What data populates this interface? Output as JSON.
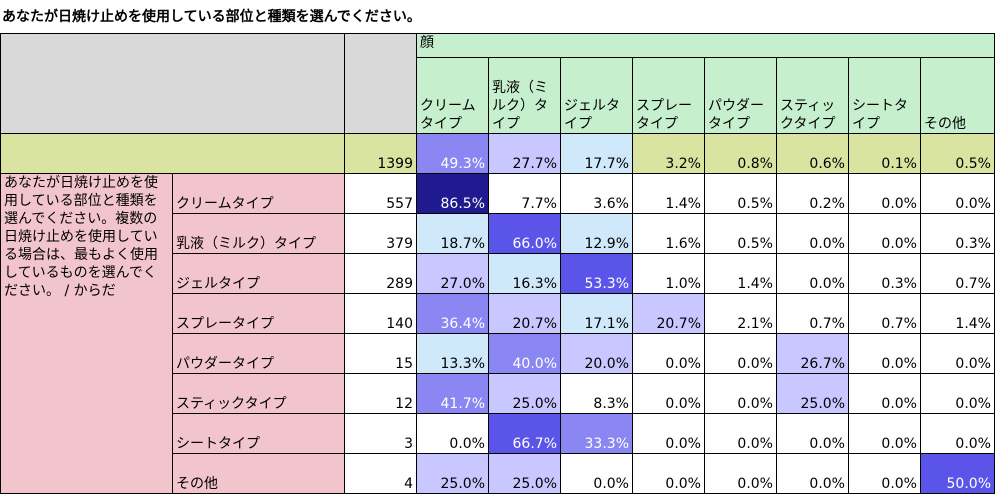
{
  "title": "あなたが日焼け止めを使用している部位と種類を選んでください。",
  "chart_data": {
    "type": "table",
    "column_group": "顔",
    "columns": [
      "クリームタイプ",
      "乳液（ミルク）タイプ",
      "ジェルタイプ",
      "スプレータイプ",
      "パウダータイプ",
      "スティックタイプ",
      "シートタイプ",
      "その他"
    ],
    "row_group": "あなたが日焼け止めを使用している部位と種類を選んでください。複数の日焼け止めを使用している場合は、最もよく使用しているものを選んでください。 / からだ",
    "total": {
      "n": 1399,
      "values": [
        "49.3%",
        "27.7%",
        "17.7%",
        "3.2%",
        "0.8%",
        "0.6%",
        "0.1%",
        "0.5%"
      ]
    },
    "rows": [
      {
        "label": "クリームタイプ",
        "n": 557,
        "values": [
          "86.5%",
          "7.7%",
          "3.6%",
          "1.4%",
          "0.5%",
          "0.2%",
          "0.0%",
          "0.0%"
        ]
      },
      {
        "label": "乳液（ミルク）タイプ",
        "n": 379,
        "values": [
          "18.7%",
          "66.0%",
          "12.9%",
          "1.6%",
          "0.5%",
          "0.0%",
          "0.0%",
          "0.3%"
        ]
      },
      {
        "label": "ジェルタイプ",
        "n": 289,
        "values": [
          "27.0%",
          "16.3%",
          "53.3%",
          "1.0%",
          "1.4%",
          "0.0%",
          "0.3%",
          "0.7%"
        ]
      },
      {
        "label": "スプレータイプ",
        "n": 140,
        "values": [
          "36.4%",
          "20.7%",
          "17.1%",
          "20.7%",
          "2.1%",
          "0.7%",
          "0.7%",
          "1.4%"
        ]
      },
      {
        "label": "パウダータイプ",
        "n": 15,
        "values": [
          "13.3%",
          "40.0%",
          "20.0%",
          "0.0%",
          "0.0%",
          "26.7%",
          "0.0%",
          "0.0%"
        ]
      },
      {
        "label": "スティックタイプ",
        "n": 12,
        "values": [
          "41.7%",
          "25.0%",
          "8.3%",
          "0.0%",
          "0.0%",
          "25.0%",
          "0.0%",
          "0.0%"
        ]
      },
      {
        "label": "シートタイプ",
        "n": 3,
        "values": [
          "0.0%",
          "66.7%",
          "33.3%",
          "0.0%",
          "0.0%",
          "0.0%",
          "0.0%",
          "0.0%"
        ]
      },
      {
        "label": "その他",
        "n": 4,
        "values": [
          "25.0%",
          "25.0%",
          "0.0%",
          "0.0%",
          "0.0%",
          "0.0%",
          "0.0%",
          "50.0%"
        ]
      }
    ],
    "colors": {
      "heat_dark": "#1f1a8f",
      "heat_mid": "#5a55e8",
      "heat_light": "#c9c7ff",
      "heat_pale": "#cfe9fb",
      "col_header_bg": "#c6efce",
      "total_row_bg": "#d8e4a0",
      "row_label_bg": "#f2c4cc",
      "corner_bg": "#d9d9d9"
    }
  }
}
